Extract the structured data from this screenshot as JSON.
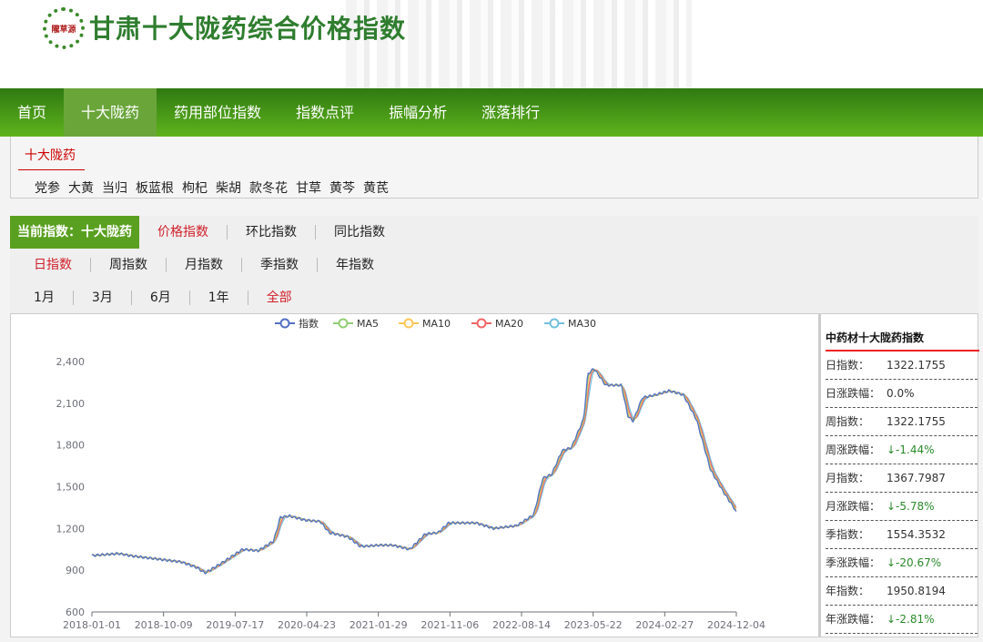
{
  "header": {
    "logo_text": "隴草源",
    "title": "甘肃十大陇药综合价格指数"
  },
  "nav": [
    {
      "label": "首页"
    },
    {
      "label": "十大陇药",
      "active": true
    },
    {
      "label": "药用部位指数"
    },
    {
      "label": "指数点评"
    },
    {
      "label": "振幅分析"
    },
    {
      "label": "涨落排行"
    }
  ],
  "sub": {
    "title": "十大陇药",
    "herbs": [
      "党参",
      "大黄",
      "当归",
      "板蓝根",
      "枸杞",
      "柴胡",
      "款冬花",
      "甘草",
      "黄芩",
      "黄芪"
    ]
  },
  "index_bar": {
    "current": "当前指数：十大陇药",
    "options": [
      "价格指数",
      "环比指数",
      "同比指数"
    ],
    "selected": "价格指数"
  },
  "period_bar": {
    "options": [
      "日指数",
      "周指数",
      "月指数",
      "季指数",
      "年指数"
    ],
    "selected": "日指数"
  },
  "range_bar": {
    "options": [
      "1月",
      "3月",
      "6月",
      "1年",
      "全部"
    ],
    "selected": "全部"
  },
  "side": {
    "title": "中药材十大陇药指数",
    "rows": [
      {
        "k": "日指数：",
        "v": "1322.1755"
      },
      {
        "k": "日涨跌幅：",
        "v": "0.0%"
      },
      {
        "k": "周指数：",
        "v": "1322.1755"
      },
      {
        "k": "周涨跌幅：",
        "v": "↓-1.44%",
        "down": true
      },
      {
        "k": "月指数：",
        "v": "1367.7987"
      },
      {
        "k": "月涨跌幅：",
        "v": "↓-5.78%",
        "down": true
      },
      {
        "k": "季指数：",
        "v": "1554.3532"
      },
      {
        "k": "季涨跌幅：",
        "v": "↓-20.67%",
        "down": true
      },
      {
        "k": "年指数：",
        "v": "1950.8194"
      },
      {
        "k": "年涨跌幅：",
        "v": "↓-2.81%",
        "down": true
      }
    ]
  },
  "chart_data": {
    "type": "line",
    "legend": [
      {
        "name": "指数",
        "color": "#5470c6"
      },
      {
        "name": "MA5",
        "color": "#91cc75"
      },
      {
        "name": "MA10",
        "color": "#fac858"
      },
      {
        "name": "MA20",
        "color": "#ee6666"
      },
      {
        "name": "MA30",
        "color": "#73c0de"
      }
    ],
    "legend_position": "top-center",
    "ylim": [
      600,
      2400
    ],
    "yticks": [
      "600",
      "900",
      "1,200",
      "1,500",
      "1,800",
      "2,100",
      "2,400"
    ],
    "xticks": [
      "2018-01-01",
      "2018-10-09",
      "2019-07-17",
      "2020-04-23",
      "2021-01-29",
      "2021-11-06",
      "2022-08-14",
      "2023-05-22",
      "2024-02-27",
      "2024-12-04"
    ],
    "xlim": [
      "2018-01-01",
      "2024-12-04"
    ],
    "series_index": [
      [
        "2018-01-01",
        1005
      ],
      [
        "2018-04-15",
        1020
      ],
      [
        "2018-06-15",
        1000
      ],
      [
        "2018-09-15",
        980
      ],
      [
        "2018-12-15",
        960
      ],
      [
        "2019-02-15",
        920
      ],
      [
        "2019-03-20",
        880
      ],
      [
        "2019-05-15",
        940
      ],
      [
        "2019-08-15",
        1050
      ],
      [
        "2019-10-15",
        1040
      ],
      [
        "2019-12-15",
        1110
      ],
      [
        "2020-01-10",
        1280
      ],
      [
        "2020-02-15",
        1290
      ],
      [
        "2020-04-15",
        1260
      ],
      [
        "2020-06-15",
        1250
      ],
      [
        "2020-07-20",
        1170
      ],
      [
        "2020-10-01",
        1140
      ],
      [
        "2020-11-20",
        1070
      ],
      [
        "2021-02-01",
        1080
      ],
      [
        "2021-03-25",
        1080
      ],
      [
        "2021-06-01",
        1050
      ],
      [
        "2021-08-01",
        1160
      ],
      [
        "2021-09-20",
        1170
      ],
      [
        "2021-11-01",
        1240
      ],
      [
        "2022-02-15",
        1240
      ],
      [
        "2022-04-25",
        1200
      ],
      [
        "2022-07-25",
        1220
      ],
      [
        "2022-10-01",
        1300
      ],
      [
        "2022-11-05",
        1560
      ],
      [
        "2022-12-10",
        1590
      ],
      [
        "2023-01-20",
        1760
      ],
      [
        "2023-02-25",
        1780
      ],
      [
        "2023-04-15",
        1990
      ],
      [
        "2023-05-01",
        2310
      ],
      [
        "2023-05-25",
        2350
      ],
      [
        "2023-07-10",
        2230
      ],
      [
        "2023-09-10",
        2230
      ],
      [
        "2023-10-05",
        2010
      ],
      [
        "2023-10-25",
        1970
      ],
      [
        "2023-12-01",
        2140
      ],
      [
        "2024-01-20",
        2160
      ],
      [
        "2024-03-15",
        2190
      ],
      [
        "2024-05-10",
        2160
      ],
      [
        "2024-07-01",
        1980
      ],
      [
        "2024-08-25",
        1620
      ],
      [
        "2024-10-15",
        1460
      ],
      [
        "2024-12-04",
        1322
      ]
    ]
  }
}
